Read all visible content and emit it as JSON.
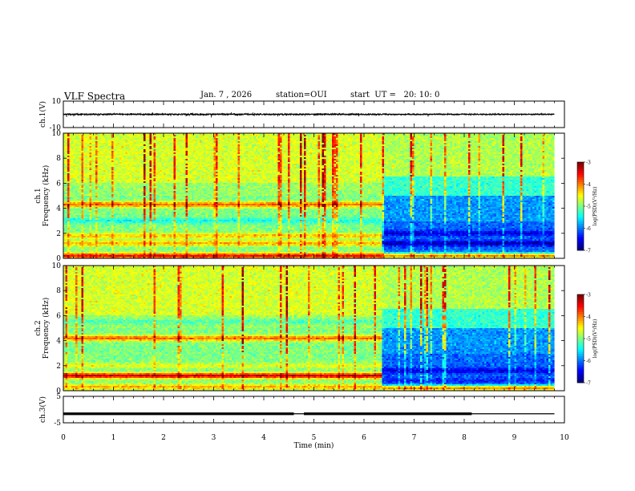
{
  "header": {
    "title": "VLF Spectra",
    "date": "Jan. 7 , 2026",
    "station": "station=OUI",
    "start_ut": "start  UT =   20: 10: 0"
  },
  "chart_data": [
    {
      "type": "line",
      "name": "ch1-waveform",
      "ylabel": "ch.1(V)",
      "ylim": [
        -10,
        10
      ],
      "yticks": [
        "10",
        "-10"
      ],
      "xlim": [
        0,
        10
      ],
      "x_end": 9.8,
      "baseline_v": 0,
      "amplitude_v": 1.5,
      "burst_amplitude_v": 4.0
    },
    {
      "type": "heatmap",
      "name": "ch1-spectrogram",
      "ylabel": "ch.1\nFrequency  (kHz)",
      "ylim": [
        0,
        10
      ],
      "yticks": [
        "0",
        "2",
        "4",
        "6",
        "8",
        "10"
      ],
      "xlim": [
        0,
        10
      ],
      "x_end": 9.8,
      "transition_min": 6.35,
      "bands_before": [
        {
          "f_khz": 4.3,
          "log_psd": -3.9
        },
        {
          "f_khz": 3.0,
          "log_psd": -5.4
        },
        {
          "f_khz": 1.8,
          "log_psd": -4.3
        },
        {
          "f_khz": 1.2,
          "log_psd": -4.2
        },
        {
          "f_khz": 0.2,
          "log_psd": -3.5
        }
      ],
      "bands_after": [
        {
          "f_khz": 2.0,
          "log_psd": -6.6
        },
        {
          "f_khz": 1.2,
          "log_psd": -6.8
        },
        {
          "f_khz": 0.2,
          "log_psd": -4.0
        }
      ],
      "colorbar": {
        "label": "log(PSD)(V²/Hz)",
        "range": [
          -7,
          -3
        ],
        "ticks": [
          "-3",
          "-4",
          "-5",
          "-6",
          "-7"
        ]
      }
    },
    {
      "type": "heatmap",
      "name": "ch2-spectrogram",
      "ylabel": "ch.2\nFrequency  (kHz)",
      "ylim": [
        0,
        10
      ],
      "yticks": [
        "0",
        "2",
        "4",
        "6",
        "8",
        "10"
      ],
      "xlim": [
        0,
        10
      ],
      "x_end": 9.8,
      "transition_min": 6.35,
      "bands_before": [
        {
          "f_khz": 4.2,
          "log_psd": -3.9
        },
        {
          "f_khz": 5.5,
          "log_psd": -5.2
        },
        {
          "f_khz": 2.0,
          "log_psd": -4.6
        },
        {
          "f_khz": 1.2,
          "log_psd": -3.3
        },
        {
          "f_khz": 0.3,
          "log_psd": -4.2
        }
      ],
      "bands_after": [
        {
          "f_khz": 1.6,
          "log_psd": -6.6
        },
        {
          "f_khz": 0.8,
          "log_psd": -6.4
        },
        {
          "f_khz": 0.2,
          "log_psd": -4.0
        }
      ],
      "colorbar": {
        "label": "log(PSD)(V²/Hz)",
        "range": [
          -7,
          -3
        ],
        "ticks": [
          "-3",
          "-4",
          "-5",
          "-6",
          "-7"
        ]
      }
    },
    {
      "type": "line",
      "name": "ch3-trace",
      "ylabel": "ch.3(V)",
      "ylim": [
        -5,
        5
      ],
      "yticks": [
        "5",
        "-5"
      ],
      "xlim": [
        0,
        10
      ],
      "x_end": 9.8,
      "level_v": -1.6,
      "gaps_min": [
        [
          4.6,
          4.8
        ],
        [
          5.75,
          5.8
        ],
        [
          8.15,
          9.8
        ]
      ],
      "thick_segments_min": [
        [
          0,
          4.6
        ],
        [
          4.8,
          8.15
        ]
      ]
    }
  ],
  "x_axis": {
    "label": "Time  (min)",
    "ticks": [
      "0",
      "1",
      "2",
      "3",
      "4",
      "5",
      "6",
      "7",
      "8",
      "9",
      "10"
    ]
  }
}
